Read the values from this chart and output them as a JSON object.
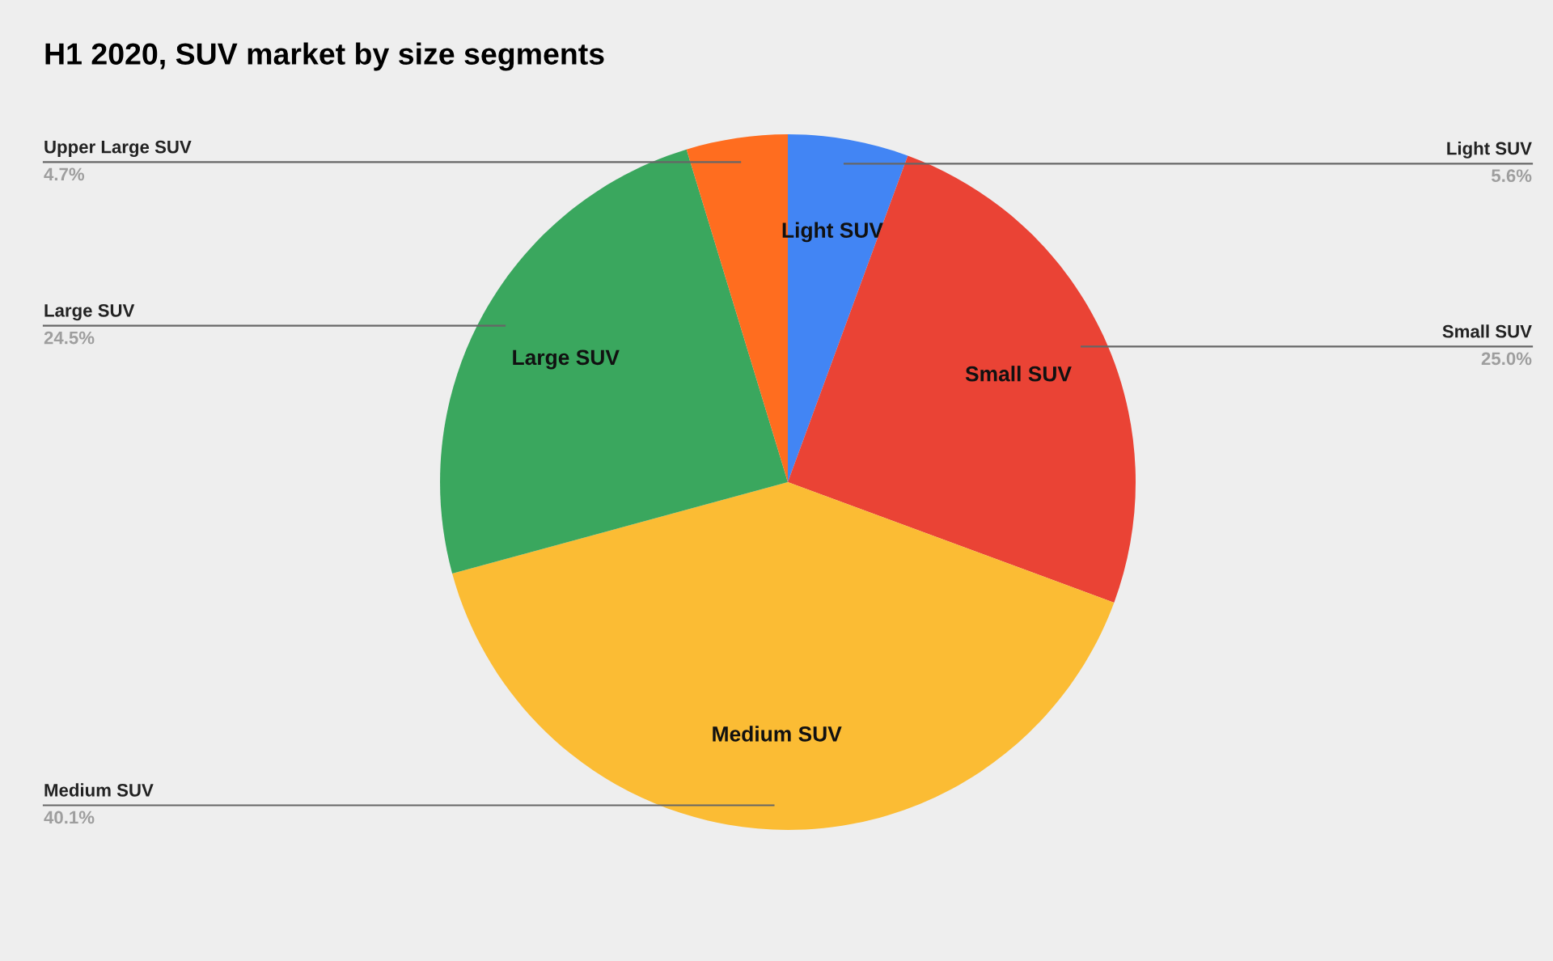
{
  "chart_data": {
    "type": "pie",
    "title": "H1 2020, SUV market by size segments",
    "categories": [
      "Light SUV",
      "Small SUV",
      "Medium SUV",
      "Large SUV",
      "Upper Large SUV"
    ],
    "values": [
      5.6,
      25.0,
      40.1,
      24.5,
      4.7
    ],
    "colors": [
      "#4285f4",
      "#ea4335",
      "#fbbc34",
      "#3aa75e",
      "#ff6d1f"
    ],
    "value_labels": [
      "5.6%",
      "25.0%",
      "40.1%",
      "24.5%",
      "4.7%"
    ],
    "annotations": [
      {
        "text": "Light SUV",
        "x": "Light SUV"
      },
      {
        "text": "Small SUV",
        "x": "Small SUV"
      },
      {
        "text": "Medium SUV",
        "x": "Medium SUV"
      },
      {
        "text": "Large SUV",
        "x": "Large SUV"
      }
    ],
    "legend": false
  }
}
